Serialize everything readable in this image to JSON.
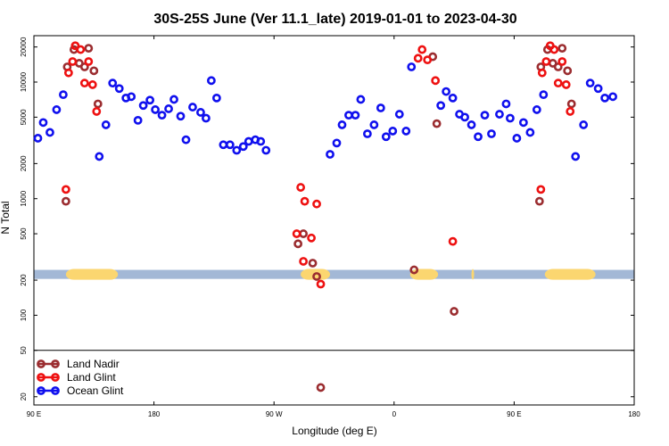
{
  "chart_data": {
    "type": "scatter",
    "title": "30S-25S June (Ver 11.1_late)   2019-01-01 to 2023-04-30",
    "xlabel": "Longitude (deg E)",
    "ylabel": "N Total",
    "x_ticks": [
      {
        "value": 90,
        "label": "90 E"
      },
      {
        "value": 180,
        "label": "180"
      },
      {
        "value": 270,
        "label": "90 W"
      },
      {
        "value": 360,
        "label": "0"
      },
      {
        "value": 450,
        "label": "90 E"
      },
      {
        "value": 540,
        "label": "180"
      }
    ],
    "xlim": [
      90,
      540
    ],
    "y_scale": "log",
    "y_ticks": [
      20,
      50,
      100,
      200,
      500,
      1000,
      2000,
      5000,
      10000,
      20000
    ],
    "ylim": [
      17,
      25000
    ],
    "legend_placement": "bottom-left",
    "band": {
      "y_range": [
        205,
        245
      ],
      "color": "#a3b8d6",
      "highlight_color": "#fbd670",
      "highlights": [
        [
          114,
          153
        ],
        [
          290,
          312
        ],
        [
          372,
          393
        ],
        [
          418,
          420
        ],
        [
          473,
          511
        ]
      ]
    },
    "legend_divider_y": 50,
    "series": [
      {
        "name": "Land Nadir",
        "color": "#9b2d30",
        "points": [
          [
            114,
            950
          ],
          [
            115,
            13500
          ],
          [
            120,
            19000
          ],
          [
            124,
            14500
          ],
          [
            128,
            13500
          ],
          [
            131,
            19500
          ],
          [
            135,
            12500
          ],
          [
            138,
            6500
          ],
          [
            288,
            410
          ],
          [
            292,
            500
          ],
          [
            299,
            280
          ],
          [
            302,
            215
          ],
          [
            305,
            24
          ],
          [
            375,
            245
          ],
          [
            389,
            16500
          ],
          [
            392,
            4400
          ],
          [
            405,
            108
          ],
          [
            469,
            950
          ],
          [
            470,
            13500
          ],
          [
            475,
            19000
          ],
          [
            479,
            14500
          ],
          [
            483,
            13500
          ],
          [
            486,
            19500
          ],
          [
            490,
            12500
          ],
          [
            493,
            6500
          ]
        ]
      },
      {
        "name": "Land Glint",
        "color": "#ee1111",
        "points": [
          [
            114,
            1200
          ],
          [
            116,
            12000
          ],
          [
            119,
            15000
          ],
          [
            121,
            20500
          ],
          [
            125,
            19000
          ],
          [
            128,
            9800
          ],
          [
            131,
            15000
          ],
          [
            134,
            9500
          ],
          [
            137,
            5600
          ],
          [
            287,
            500
          ],
          [
            290,
            1250
          ],
          [
            292,
            290
          ],
          [
            293,
            950
          ],
          [
            298,
            460
          ],
          [
            302,
            900
          ],
          [
            305,
            185
          ],
          [
            378,
            16000
          ],
          [
            381,
            19000
          ],
          [
            385,
            15500
          ],
          [
            391,
            10300
          ],
          [
            404,
            430
          ],
          [
            470,
            1200
          ],
          [
            471,
            12000
          ],
          [
            474,
            15000
          ],
          [
            477,
            20500
          ],
          [
            480,
            19000
          ],
          [
            483,
            9800
          ],
          [
            486,
            15000
          ],
          [
            489,
            9500
          ],
          [
            492,
            5600
          ]
        ]
      },
      {
        "name": "Ocean Glint",
        "color": "#1010ee",
        "points": [
          [
            93,
            3300
          ],
          [
            97,
            4500
          ],
          [
            102,
            3700
          ],
          [
            107,
            5800
          ],
          [
            112,
            7800
          ],
          [
            139,
            2300
          ],
          [
            144,
            4300
          ],
          [
            149,
            9800
          ],
          [
            154,
            8800
          ],
          [
            159,
            7300
          ],
          [
            163,
            7500
          ],
          [
            168,
            4700
          ],
          [
            172,
            6300
          ],
          [
            177,
            7000
          ],
          [
            181,
            5800
          ],
          [
            186,
            5200
          ],
          [
            191,
            5900
          ],
          [
            195,
            7100
          ],
          [
            200,
            5100
          ],
          [
            204,
            3200
          ],
          [
            209,
            6100
          ],
          [
            215,
            5500
          ],
          [
            219,
            4900
          ],
          [
            223,
            10300
          ],
          [
            227,
            7300
          ],
          [
            232,
            2900
          ],
          [
            237,
            2900
          ],
          [
            242,
            2600
          ],
          [
            247,
            2800
          ],
          [
            251,
            3100
          ],
          [
            256,
            3200
          ],
          [
            260,
            3100
          ],
          [
            264,
            2600
          ],
          [
            312,
            2400
          ],
          [
            317,
            3000
          ],
          [
            321,
            4300
          ],
          [
            326,
            5200
          ],
          [
            331,
            5200
          ],
          [
            335,
            7100
          ],
          [
            340,
            3600
          ],
          [
            345,
            4300
          ],
          [
            350,
            6000
          ],
          [
            354,
            3400
          ],
          [
            359,
            3800
          ],
          [
            364,
            5300
          ],
          [
            369,
            3800
          ],
          [
            373,
            13500
          ],
          [
            395,
            6300
          ],
          [
            399,
            8300
          ],
          [
            404,
            7300
          ],
          [
            409,
            5300
          ],
          [
            413,
            5000
          ],
          [
            418,
            4300
          ],
          [
            423,
            3400
          ],
          [
            428,
            5200
          ],
          [
            433,
            3600
          ],
          [
            439,
            5300
          ],
          [
            444,
            6500
          ],
          [
            447,
            4900
          ],
          [
            452,
            3300
          ],
          [
            457,
            4500
          ],
          [
            462,
            3700
          ],
          [
            467,
            5800
          ],
          [
            472,
            7800
          ],
          [
            496,
            2300
          ],
          [
            502,
            4300
          ],
          [
            507,
            9800
          ],
          [
            513,
            8800
          ],
          [
            518,
            7300
          ],
          [
            524,
            7500
          ]
        ]
      }
    ]
  }
}
